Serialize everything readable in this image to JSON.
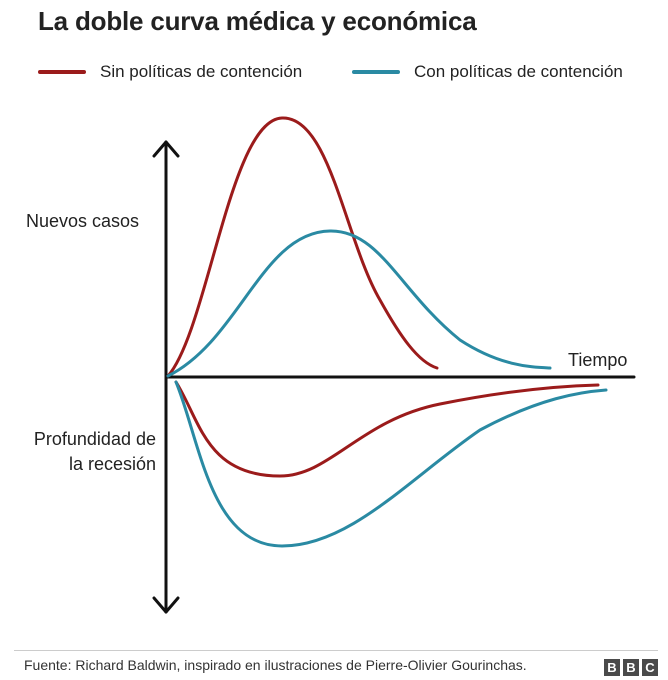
{
  "title": "La doble curva médica y económica",
  "legend": [
    {
      "label": "Sin políticas de contención",
      "color": "#9b1b1b"
    },
    {
      "label": "Con políticas de contención",
      "color": "#2a8aa3"
    }
  ],
  "axes": {
    "y_top_label": "Nuevos casos",
    "y_bottom_label": "Profundidad de la recesión",
    "x_label": "Tiempo",
    "color": "#111111"
  },
  "footer": {
    "source": "Fuente: Richard Baldwin, inspirado en ilustraciones de Pierre-Olivier Gourinchas.",
    "logo": [
      "B",
      "B",
      "C"
    ]
  }
}
